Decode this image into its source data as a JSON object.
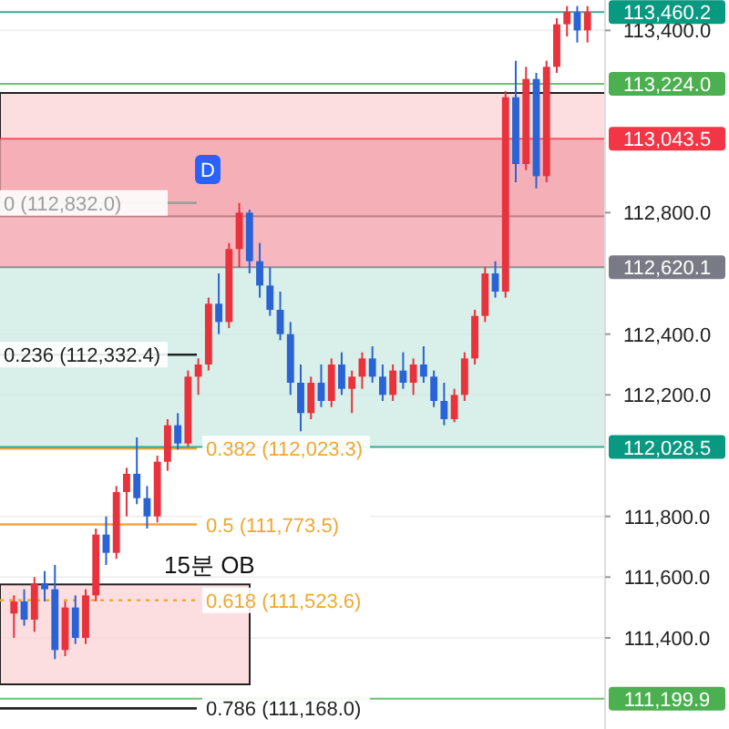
{
  "chart_data": {
    "type": "candlestick",
    "categories": [
      null,
      null,
      null,
      null,
      null,
      null,
      null,
      null,
      null,
      null,
      null,
      null,
      null,
      null,
      null,
      null,
      null,
      null,
      null,
      null,
      null,
      null,
      null,
      null,
      null,
      null,
      null,
      null,
      null,
      null,
      null,
      null,
      null,
      null,
      null,
      null,
      null,
      null,
      null,
      null,
      null,
      null,
      null,
      null,
      null,
      null,
      null,
      null,
      null,
      null,
      null,
      null,
      null,
      null,
      null,
      null,
      null
    ],
    "ohlc": [
      [
        111480,
        111540,
        111400,
        111520
      ],
      [
        111520,
        111560,
        111440,
        111460
      ],
      [
        111460,
        111600,
        111420,
        111580
      ],
      [
        111580,
        111620,
        111520,
        111560
      ],
      [
        111560,
        111640,
        111330,
        111360
      ],
      [
        111360,
        111520,
        111340,
        111500
      ],
      [
        111500,
        111540,
        111380,
        111400
      ],
      [
        111400,
        111560,
        111380,
        111540
      ],
      [
        111540,
        111760,
        111520,
        111740
      ],
      [
        111740,
        111800,
        111640,
        111680
      ],
      [
        111680,
        111900,
        111660,
        111880
      ],
      [
        111880,
        111960,
        111800,
        111940
      ],
      [
        111940,
        112060,
        111840,
        111860
      ],
      [
        111860,
        111900,
        111760,
        111800
      ],
      [
        111800,
        112000,
        111780,
        111980
      ],
      [
        111980,
        112120,
        111950,
        112100
      ],
      [
        112100,
        112140,
        112020,
        112040
      ],
      [
        112040,
        112280,
        112030,
        112260
      ],
      [
        112260,
        112320,
        112200,
        112300
      ],
      [
        112300,
        112520,
        112280,
        112500
      ],
      [
        112500,
        112600,
        112400,
        112440
      ],
      [
        112440,
        112700,
        112420,
        112680
      ],
      [
        112680,
        112832,
        112620,
        112800
      ],
      [
        112800,
        112810,
        112600,
        112640
      ],
      [
        112640,
        112700,
        112520,
        112560
      ],
      [
        112560,
        112620,
        112460,
        112480
      ],
      [
        112480,
        112540,
        112380,
        112400
      ],
      [
        112400,
        112440,
        112200,
        112240
      ],
      [
        112240,
        112300,
        112080,
        112140
      ],
      [
        112140,
        112260,
        112120,
        112240
      ],
      [
        112240,
        112300,
        112160,
        112180
      ],
      [
        112180,
        112320,
        112160,
        112300
      ],
      [
        112300,
        112340,
        112200,
        112220
      ],
      [
        112220,
        112280,
        112140,
        112260
      ],
      [
        112260,
        112340,
        112220,
        112320
      ],
      [
        112320,
        112360,
        112240,
        112260
      ],
      [
        112260,
        112300,
        112180,
        112200
      ],
      [
        112200,
        112300,
        112180,
        112280
      ],
      [
        112280,
        112340,
        112220,
        112240
      ],
      [
        112240,
        112320,
        112200,
        112300
      ],
      [
        112300,
        112360,
        112240,
        112260
      ],
      [
        112260,
        112280,
        112160,
        112180
      ],
      [
        112180,
        112240,
        112100,
        112120
      ],
      [
        112120,
        112220,
        112110,
        112200
      ],
      [
        112200,
        112340,
        112180,
        112320
      ],
      [
        112320,
        112480,
        112300,
        112460
      ],
      [
        112460,
        112620,
        112440,
        112600
      ],
      [
        112600,
        112640,
        112520,
        112540
      ],
      [
        112540,
        113200,
        112520,
        113180
      ],
      [
        113180,
        113300,
        112900,
        112960
      ],
      [
        112960,
        113280,
        112940,
        113240
      ],
      [
        113240,
        113260,
        112880,
        112920
      ],
      [
        112920,
        113300,
        112900,
        113280
      ],
      [
        113280,
        113440,
        113260,
        113420
      ],
      [
        113420,
        113480,
        113380,
        113460
      ],
      [
        113460,
        113480,
        113360,
        113400
      ],
      [
        113400,
        113480,
        113360,
        113460
      ]
    ],
    "colors": [
      "#e8323c",
      "#2a63d6",
      "#e8323c",
      "#2a63d6",
      "#2a63d6",
      "#e8323c",
      "#2a63d6",
      "#e8323c",
      "#e8323c",
      "#2a63d6",
      "#e8323c",
      "#e8323c",
      "#2a63d6",
      "#2a63d6",
      "#e8323c",
      "#e8323c",
      "#2a63d6",
      "#e8323c",
      "#e8323c",
      "#e8323c",
      "#2a63d6",
      "#e8323c",
      "#e8323c",
      "#2a63d6",
      "#2a63d6",
      "#2a63d6",
      "#2a63d6",
      "#2a63d6",
      "#2a63d6",
      "#e8323c",
      "#2a63d6",
      "#e8323c",
      "#2a63d6",
      "#e8323c",
      "#e8323c",
      "#2a63d6",
      "#2a63d6",
      "#e8323c",
      "#2a63d6",
      "#e8323c",
      "#2a63d6",
      "#2a63d6",
      "#2a63d6",
      "#e8323c",
      "#e8323c",
      "#e8323c",
      "#e8323c",
      "#2a63d6",
      "#e8323c",
      "#2a63d6",
      "#e8323c",
      "#2a63d6",
      "#e8323c",
      "#e8323c",
      "#e8323c",
      "#2a63d6",
      "#e8323c"
    ],
    "ylim": [
      111100,
      113500
    ],
    "yticks": [
      {
        "value": 113400,
        "label": "113,400.0"
      },
      {
        "value": 112800,
        "label": "112,800.0"
      },
      {
        "value": 112400,
        "label": "112,400.0"
      },
      {
        "value": 112200,
        "label": "112,200.0"
      },
      {
        "value": 111800,
        "label": "111,800.0"
      },
      {
        "value": 111600,
        "label": "111,600.0"
      },
      {
        "value": 111400,
        "label": "111,400.0"
      }
    ],
    "y2lim": [
      111100,
      113500
    ],
    "grid": true,
    "bands": [
      {
        "axis": "y",
        "from": 112788,
        "to": 113194,
        "color": "#fbd3d7"
      },
      {
        "axis": "y",
        "from": 112620.1,
        "to": 113043.5,
        "color": "#f3a0a8"
      },
      {
        "axis": "y",
        "from": 112028.5,
        "to": 112620.1,
        "color": "#cbe9e3"
      },
      {
        "axis": "y",
        "from": 111247,
        "to": 111576,
        "color": "#fbd3d7",
        "label": "15분 OB"
      }
    ],
    "ref_lines": [
      {
        "axis": "y",
        "value": 112832.0,
        "label": "0 (112,832.0)",
        "color": "#9e9e9e"
      },
      {
        "axis": "y",
        "value": 112332.4,
        "label": "0.236 (112,332.4)",
        "color": "#222222"
      },
      {
        "axis": "y",
        "value": 112023.3,
        "label": "0.382 (112,023.3)",
        "color": "#f0a830"
      },
      {
        "axis": "y",
        "value": 111773.5,
        "label": "0.5 (111,773.5)",
        "color": "#f0a830"
      },
      {
        "axis": "y",
        "value": 111523.6,
        "label": "0.618 (111,523.6)",
        "color": "#f0a830",
        "line_style": "dotted"
      },
      {
        "axis": "y",
        "value": 111168.0,
        "label": "0.786 (111,168.0)",
        "color": "#222222"
      },
      {
        "axis": "y2",
        "value": 113460.2,
        "label": "113,460.2",
        "color": "#089981"
      },
      {
        "axis": "y2",
        "value": 113224.0,
        "label": "113,224.0",
        "color": "#4caf50"
      },
      {
        "axis": "y2",
        "value": 113043.5,
        "label": "113,043.5",
        "color": "#f23645"
      },
      {
        "axis": "y2",
        "value": 112620.1,
        "label": "112,620.1",
        "color": "#787b86"
      },
      {
        "axis": "y2",
        "value": 112028.5,
        "label": "112,028.5",
        "color": "#089981"
      },
      {
        "axis": "y2",
        "value": 111199.9,
        "label": "111,199.9",
        "color": "#4caf50"
      }
    ],
    "annotations": [
      "D"
    ]
  }
}
